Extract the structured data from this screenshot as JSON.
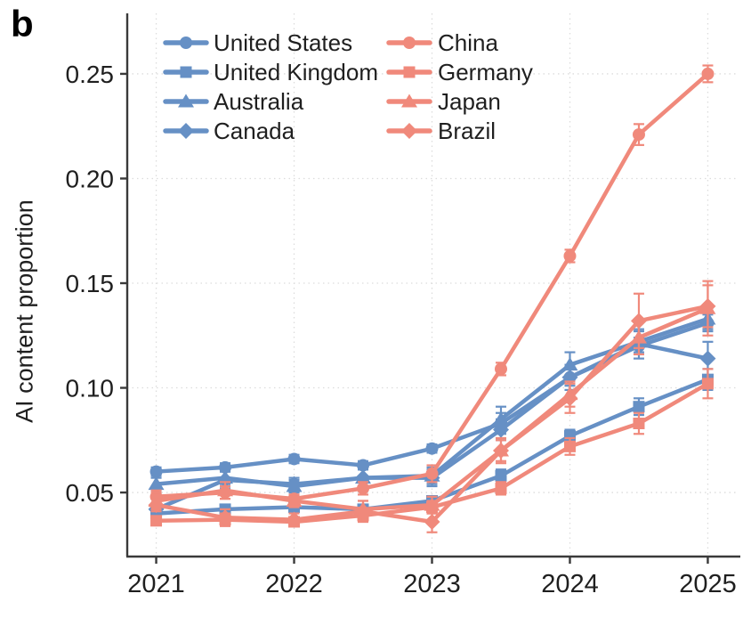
{
  "panel_label": "b",
  "chart_data": {
    "type": "line",
    "title": "",
    "xlabel": "",
    "ylabel": "AI content proportion",
    "grid": true,
    "legend_position": "top-left inside plot, two columns",
    "x_ticks": [
      2021,
      2022,
      2023,
      2024,
      2025
    ],
    "y_ticks": [
      0.05,
      0.1,
      0.15,
      0.2,
      0.25
    ],
    "x_range": [
      2020.79,
      2025.21
    ],
    "y_range": [
      0.0194,
      0.2789
    ],
    "colors": {
      "blue": "#6690C5",
      "salmon": "#F0897B"
    },
    "x": [
      2021,
      2021.5,
      2022,
      2022.5,
      2023,
      2023.5,
      2024,
      2024.5,
      2025
    ],
    "series": [
      {
        "name": "United States",
        "color": "#6690C5",
        "marker": "circle",
        "values": [
          0.06,
          0.062,
          0.066,
          0.063,
          0.071,
          0.083,
          0.105,
          0.12,
          0.131
        ],
        "errors": [
          0.002,
          0.002,
          0.002,
          0.002,
          0.002,
          0.005,
          0.004,
          0.004,
          0.004
        ]
      },
      {
        "name": "United Kingdom",
        "color": "#6690C5",
        "marker": "square",
        "values": [
          0.04,
          0.042,
          0.043,
          0.042,
          0.046,
          0.058,
          0.077,
          0.091,
          0.104
        ],
        "errors": [
          0.002,
          0.002,
          0.002,
          0.002,
          0.002,
          0.003,
          0.003,
          0.004,
          0.005
        ]
      },
      {
        "name": "Australia",
        "color": "#6690C5",
        "marker": "triangle",
        "values": [
          0.054,
          0.057,
          0.053,
          0.057,
          0.058,
          0.085,
          0.111,
          0.122,
          0.133
        ],
        "errors": [
          0.003,
          0.003,
          0.003,
          0.004,
          0.004,
          0.006,
          0.006,
          0.005,
          0.005
        ]
      },
      {
        "name": "Canada",
        "color": "#6690C5",
        "marker": "diamond",
        "values": [
          0.042,
          0.056,
          0.054,
          0.057,
          0.057,
          0.08,
          0.105,
          0.121,
          0.114
        ],
        "errors": [
          0.003,
          0.004,
          0.003,
          0.004,
          0.004,
          0.005,
          0.006,
          0.007,
          0.008
        ]
      },
      {
        "name": "China",
        "color": "#F0897B",
        "marker": "circle",
        "values": [
          0.048,
          0.05,
          0.047,
          0.052,
          0.059,
          0.109,
          0.163,
          0.221,
          0.25
        ],
        "errors": [
          0.003,
          0.003,
          0.002,
          0.003,
          0.004,
          0.003,
          0.003,
          0.005,
          0.004
        ]
      },
      {
        "name": "Germany",
        "color": "#F0897B",
        "marker": "square",
        "values": [
          0.0365,
          0.037,
          0.036,
          0.039,
          0.043,
          0.052,
          0.072,
          0.083,
          0.102
        ],
        "errors": [
          0.002,
          0.003,
          0.002,
          0.003,
          0.003,
          0.003,
          0.004,
          0.005,
          0.007
        ]
      },
      {
        "name": "Japan",
        "color": "#F0897B",
        "marker": "triangle",
        "values": [
          0.046,
          0.051,
          0.046,
          0.042,
          0.044,
          0.07,
          0.097,
          0.124,
          0.138
        ],
        "errors": [
          0.004,
          0.004,
          0.003,
          0.004,
          0.004,
          0.005,
          0.006,
          0.008,
          0.013
        ]
      },
      {
        "name": "Brazil",
        "color": "#F0897B",
        "marker": "diamond",
        "values": [
          0.044,
          0.038,
          0.037,
          0.041,
          0.036,
          0.07,
          0.095,
          0.132,
          0.139
        ],
        "errors": [
          0.003,
          0.004,
          0.003,
          0.005,
          0.005,
          0.006,
          0.007,
          0.013,
          0.01
        ]
      }
    ]
  }
}
